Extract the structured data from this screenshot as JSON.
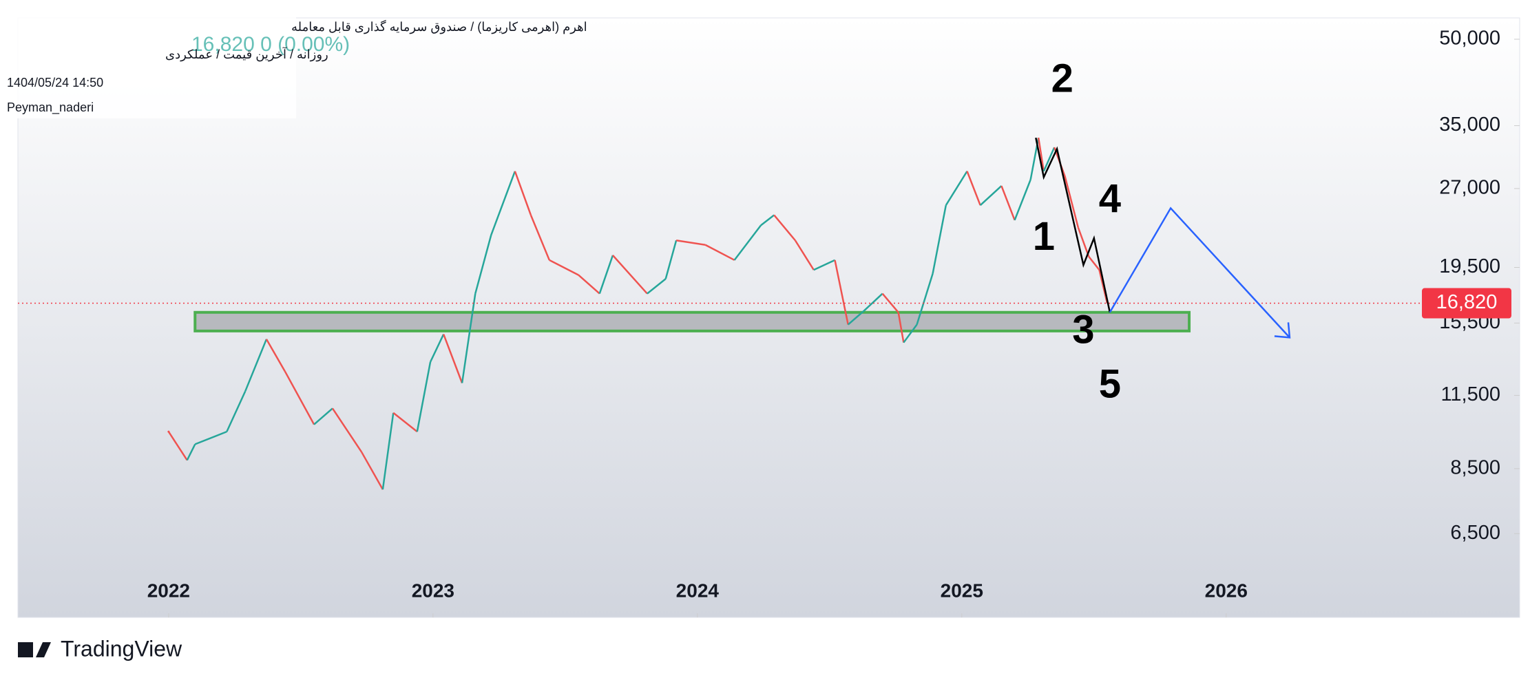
{
  "header": {
    "title": "اهرم (اهرمی کاریزما) / صندوق سرمایه گذاری قابل معامله",
    "interval": "روزانه / آخرین قیمت / عملکردی",
    "quote": "16,820  0 (0.00%)",
    "date": "1404/05/24 14:50",
    "author": "Peyman_naderi"
  },
  "chart_data": {
    "type": "line",
    "log_scale": true,
    "up_color": "#26a69a",
    "down_color": "#ef5350",
    "x": [
      2022.0,
      2022.07,
      2022.1,
      2022.22,
      2022.29,
      2022.37,
      2022.44,
      2022.55,
      2022.62,
      2022.73,
      2022.81,
      2022.85,
      2022.94,
      2022.99,
      2023.04,
      2023.11,
      2023.16,
      2023.22,
      2023.31,
      2023.37,
      2023.44,
      2023.55,
      2023.63,
      2023.68,
      2023.81,
      2023.88,
      2023.92,
      2024.03,
      2024.14,
      2024.24,
      2024.29,
      2024.37,
      2024.44,
      2024.52,
      2024.57,
      2024.63,
      2024.7,
      2024.76,
      2024.78,
      2024.83,
      2024.89,
      2024.94,
      2025.02,
      2025.07,
      2025.15,
      2025.2,
      2025.26,
      2025.29,
      2025.31,
      2025.35,
      2025.39,
      2025.44,
      2025.48,
      2025.52,
      2025.55
    ],
    "series": [
      {
        "values": [
          9900,
          8800,
          9400,
          9900,
          11700,
          14500,
          12700,
          10200,
          10900,
          9100,
          7800,
          10700,
          9900,
          13200,
          14800,
          12100,
          17500,
          22300,
          29000,
          24200,
          20100,
          18900,
          17500,
          20500,
          17500,
          18600,
          21800,
          21400,
          20100,
          23200,
          24200,
          21800,
          19300,
          20100,
          15400,
          16300,
          17500,
          16200,
          14300,
          15400,
          19000,
          25200,
          29000,
          25200,
          27300,
          23700,
          28000,
          33300,
          29000,
          32000,
          28400,
          23000,
          20400,
          19300,
          16820
        ]
      }
    ],
    "last": {
      "value": 16820,
      "label": "16,820",
      "color": "#f23645"
    },
    "xlim": [
      2021.43,
      2027.11
    ],
    "xticks": [
      2022,
      2023,
      2024,
      2025,
      2026
    ],
    "ylim": [
      4600,
      54600
    ],
    "yticks": [
      {
        "value": 6500,
        "label": "6,500"
      },
      {
        "value": 8500,
        "label": "8,500"
      },
      {
        "value": 11500,
        "label": "11,500"
      },
      {
        "value": 15500,
        "label": "15,500"
      },
      {
        "value": 19500,
        "label": "19,500"
      },
      {
        "value": 27000,
        "label": "27,000"
      },
      {
        "value": 35000,
        "label": "35,000"
      },
      {
        "value": 50000,
        "label": "50,000"
      }
    ],
    "zone": {
      "x": [
        2022.1,
        2025.86
      ],
      "y": [
        15000,
        16200
      ]
    },
    "wave": {
      "x": [
        2025.28,
        2025.31,
        2025.36,
        2025.46,
        2025.5,
        2025.56
      ],
      "y": [
        33300,
        28300,
        31800,
        19700,
        22000,
        16200
      ]
    },
    "projection": {
      "x": [
        2025.56,
        2025.79,
        2026.24
      ],
      "y": [
        16200,
        24900,
        14600
      ]
    },
    "wave_labels": [
      {
        "text": "2",
        "x": 2025.38,
        "y": 42000
      },
      {
        "text": "4",
        "x": 2025.56,
        "y": 25600
      },
      {
        "text": "1",
        "x": 2025.31,
        "y": 21900
      },
      {
        "text": "3",
        "x": 2025.46,
        "y": 14900
      },
      {
        "text": "5",
        "x": 2025.56,
        "y": 11900
      }
    ]
  },
  "footer": {
    "brand": "TradingView"
  }
}
